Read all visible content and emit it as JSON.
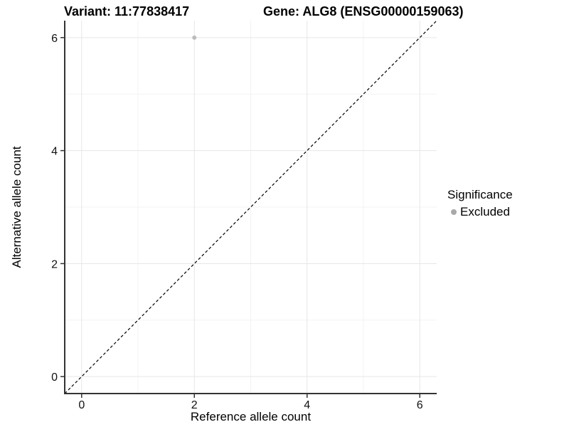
{
  "header": {
    "variant_title": "Variant: 11:77838417",
    "gene_title": "Gene: ALG8 (ENSG00000159063)"
  },
  "chart_data": {
    "type": "scatter",
    "title": "Variant: 11:77838417    Gene: ALG8 (ENSG00000159063)",
    "xlabel": "Reference allele count",
    "ylabel": "Alternative allele count",
    "xlim": [
      -0.3,
      6.3
    ],
    "ylim": [
      -0.3,
      6.3
    ],
    "x_ticks": [
      0,
      2,
      4,
      6
    ],
    "y_ticks": [
      0,
      2,
      4,
      6
    ],
    "x_minor_ticks": [
      1,
      3,
      5
    ],
    "y_minor_ticks": [
      1,
      3,
      5
    ],
    "grid": true,
    "points": [
      {
        "x": 2,
        "y": 6,
        "series": "Excluded"
      }
    ],
    "reference_line": {
      "slope": 1,
      "intercept": 0,
      "style": "dashed",
      "color": "#000000"
    },
    "legend": {
      "title": "Significance",
      "position": "right",
      "items": [
        {
          "label": "Excluded",
          "color": "#a9a9a9"
        }
      ]
    },
    "colors": {
      "excluded_point": "#bcbcbc",
      "grid_major": "#e6e6e6",
      "grid_minor": "#f3f3f3",
      "axis_line": "#333333",
      "tick_mark": "#333333",
      "tick_label": "#111111",
      "background": "#ffffff"
    }
  }
}
